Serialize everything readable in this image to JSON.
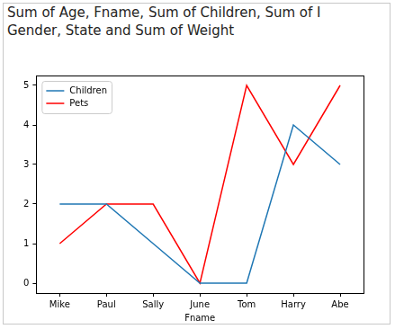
{
  "chart_data": {
    "type": "line",
    "title": [
      "Sum of Age, Fname, Sum of Children, Sum of I",
      "Gender, State and Sum of Weight"
    ],
    "x_label": "Fname",
    "categories": [
      "Mike",
      "Paul",
      "Sally",
      "June",
      "Tom",
      "Harry",
      "Abe"
    ],
    "series": [
      {
        "name": "Children",
        "color": "#1f77b4",
        "values": [
          2,
          2,
          1,
          0,
          0,
          4,
          3
        ]
      },
      {
        "name": "Pets",
        "color": "#ff0000",
        "values": [
          1,
          2,
          2,
          0,
          5,
          3,
          5
        ]
      }
    ],
    "ylim": [
      -0.25,
      5.25
    ],
    "yticks": [
      0,
      1,
      2,
      3,
      4,
      5
    ],
    "grid": false,
    "legend": "upper left"
  }
}
